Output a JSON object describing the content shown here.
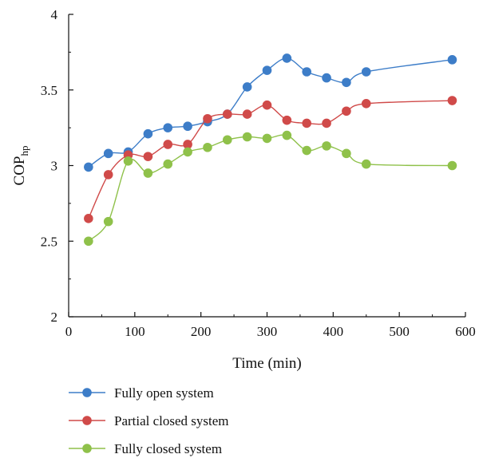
{
  "chart_data": {
    "type": "line",
    "title": "",
    "xlabel": "Time (min)",
    "ylabel_main": "COP",
    "ylabel_sub": "hp",
    "xlim": [
      0,
      600
    ],
    "ylim": [
      2,
      4
    ],
    "xticks": [
      "0",
      "100",
      "200",
      "300",
      "400",
      "500",
      "600"
    ],
    "yticks": [
      "2",
      "2.5",
      "3",
      "3.5",
      "4"
    ],
    "xtick_values": [
      0,
      100,
      200,
      300,
      400,
      500,
      600
    ],
    "ytick_values": [
      2,
      2.5,
      3,
      3.5,
      4
    ],
    "grid": false,
    "legend_position": "bottom",
    "series": [
      {
        "name": "Fully open system",
        "color": "#3d7dc8",
        "x": [
          30,
          60,
          90,
          120,
          150,
          180,
          210,
          240,
          270,
          300,
          330,
          360,
          390,
          420,
          450,
          580
        ],
        "y": [
          2.99,
          3.08,
          3.09,
          3.21,
          3.25,
          3.26,
          3.29,
          3.34,
          3.52,
          3.63,
          3.71,
          3.62,
          3.58,
          3.55,
          3.62,
          3.7
        ]
      },
      {
        "name": "Partial closed system",
        "color": "#d04a49",
        "x": [
          30,
          60,
          90,
          120,
          150,
          180,
          210,
          240,
          270,
          300,
          330,
          360,
          390,
          420,
          450,
          580
        ],
        "y": [
          2.65,
          2.94,
          3.07,
          3.06,
          3.14,
          3.14,
          3.31,
          3.34,
          3.34,
          3.4,
          3.3,
          3.28,
          3.28,
          3.36,
          3.41,
          3.43
        ]
      },
      {
        "name": "Fully closed system",
        "color": "#8fc14a",
        "x": [
          30,
          60,
          90,
          120,
          150,
          180,
          210,
          240,
          270,
          300,
          330,
          360,
          390,
          420,
          450,
          580
        ],
        "y": [
          2.5,
          2.63,
          3.03,
          2.95,
          3.01,
          3.09,
          3.12,
          3.17,
          3.19,
          3.18,
          3.2,
          3.1,
          3.13,
          3.08,
          3.01,
          3.0
        ]
      }
    ]
  }
}
